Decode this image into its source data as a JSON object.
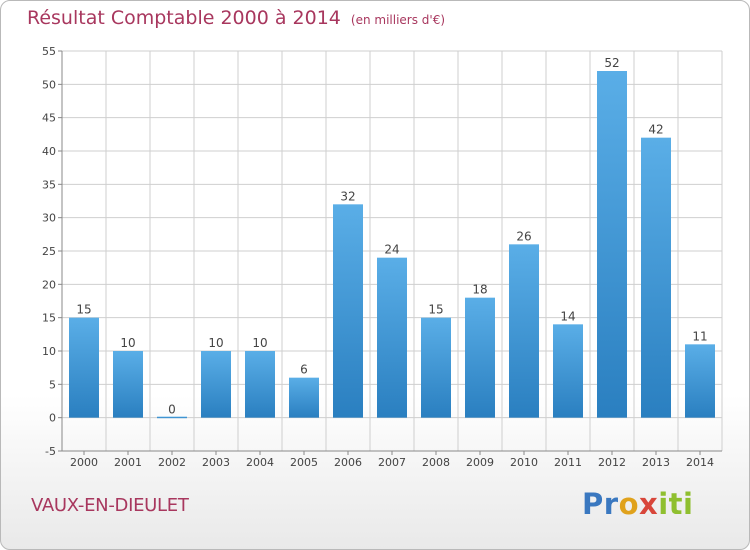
{
  "title": "Résultat Comptable 2000 à 2014",
  "subtitle": "(en milliers d'€)",
  "commune": "VAUX-EN-DIEULET",
  "logo": {
    "p1": "Pr",
    "p2": "o",
    "p3": "x",
    "p4": "iti"
  },
  "colors": {
    "title": "#a8375e",
    "bar_top": "#5aaee7",
    "bar_bottom": "#2a7fc0",
    "grid": "#cfcfcf",
    "axis": "#888888"
  },
  "chart_data": {
    "type": "bar",
    "categories": [
      "2000",
      "2001",
      "2002",
      "2003",
      "2004",
      "2005",
      "2006",
      "2007",
      "2008",
      "2009",
      "2010",
      "2011",
      "2012",
      "2013",
      "2014"
    ],
    "values": [
      15,
      10,
      0,
      10,
      10,
      6,
      32,
      24,
      15,
      18,
      26,
      14,
      52,
      42,
      11
    ],
    "data_labels": [
      "15",
      "10",
      "0",
      "10",
      "10",
      "6",
      "32",
      "24",
      "15",
      "18",
      "26",
      "14",
      "52",
      "42",
      "11"
    ],
    "ylim": [
      -5,
      55
    ],
    "yticks": [
      -5,
      0,
      5,
      10,
      15,
      20,
      25,
      30,
      35,
      40,
      45,
      50,
      55
    ],
    "grid": true,
    "legend": "none"
  }
}
